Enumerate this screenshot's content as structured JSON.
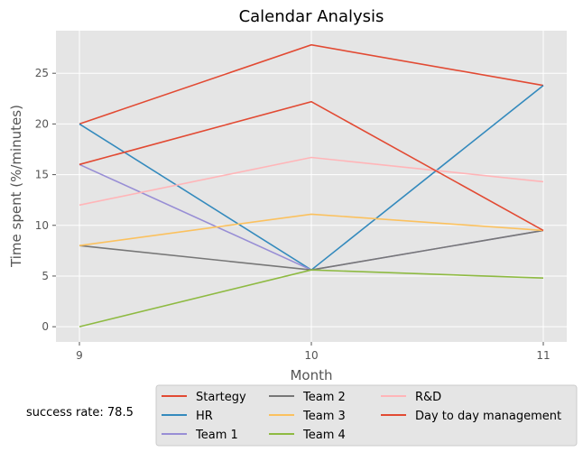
{
  "chart_data": {
    "type": "line",
    "title": "Calendar Analysis",
    "xlabel": "Month",
    "ylabel": "Time spent (%/minutes)",
    "x": [
      9,
      10,
      11
    ],
    "xticks": [
      "9",
      "10",
      "11"
    ],
    "yticks": [
      "0",
      "5",
      "10",
      "15",
      "20",
      "25"
    ],
    "ylim": [
      -1.5,
      29.2
    ],
    "grid": true,
    "legend_position": "bottom-center",
    "series": [
      {
        "name": "Startegy",
        "color": "#E24A33",
        "values": [
          20.0,
          27.8,
          23.8
        ]
      },
      {
        "name": "HR",
        "color": "#348ABD",
        "values": [
          20.0,
          5.6,
          23.8
        ]
      },
      {
        "name": "Team 1",
        "color": "#988ED5",
        "values": [
          16.0,
          5.6,
          9.5
        ]
      },
      {
        "name": "Team 2",
        "color": "#777777",
        "values": [
          8.0,
          5.6,
          9.5
        ]
      },
      {
        "name": "Team 3",
        "color": "#FBC15E",
        "values": [
          8.0,
          11.1,
          9.5
        ]
      },
      {
        "name": "Team 4",
        "color": "#8EBA42",
        "values": [
          0.0,
          5.6,
          4.8
        ]
      },
      {
        "name": "R&D",
        "color": "#FFB5B8",
        "values": [
          12.0,
          16.7,
          14.3
        ]
      },
      {
        "name": "Day to day management",
        "color": "#E24A33",
        "values": [
          16.0,
          22.2,
          9.5
        ]
      }
    ]
  },
  "annotation": "success rate: 78.5"
}
